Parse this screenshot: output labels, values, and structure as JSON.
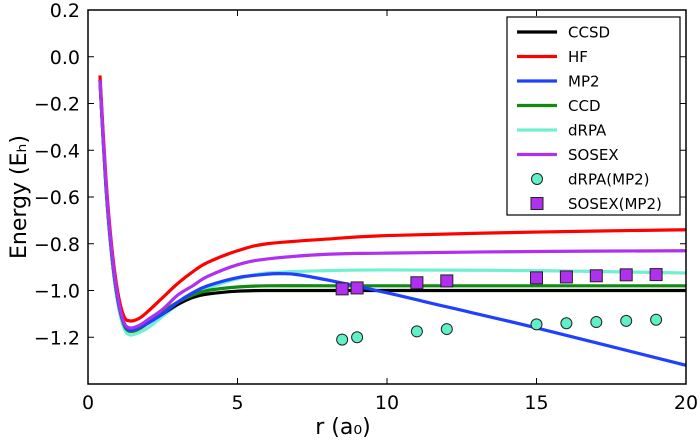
{
  "chart_data": {
    "type": "line",
    "xlabel": "r (a₀)",
    "ylabel": "Energy (Eₕ)",
    "xlim": [
      0,
      20
    ],
    "ylim": [
      -1.4,
      0.2
    ],
    "xticks": [
      "0",
      "5",
      "10",
      "15",
      "20"
    ],
    "yticks": [
      "0.2",
      "0.0",
      "−0.2",
      "−0.4",
      "−0.6",
      "−0.8",
      "−1.0",
      "−1.2"
    ],
    "grid": false,
    "legend_position": "top-right",
    "series": [
      {
        "name": "CCSD",
        "color": "#000000",
        "kind": "line",
        "x": [
          0.4,
          0.6,
          0.8,
          1.0,
          1.2,
          1.4,
          1.7,
          2,
          2.5,
          3,
          3.5,
          4,
          5,
          6,
          8,
          10,
          15,
          20
        ],
        "y": [
          -0.1,
          -0.55,
          -0.85,
          -1.04,
          -1.14,
          -1.17,
          -1.16,
          -1.14,
          -1.1,
          -1.06,
          -1.03,
          -1.015,
          -1.003,
          -1.0,
          -1.0,
          -1.0,
          -1.0,
          -1.0
        ]
      },
      {
        "name": "HF",
        "color": "#ff0000",
        "kind": "line",
        "x": [
          0.4,
          0.6,
          0.8,
          1.0,
          1.2,
          1.4,
          1.7,
          2,
          2.5,
          3,
          3.5,
          4,
          5,
          6,
          8,
          10,
          15,
          20
        ],
        "y": [
          -0.08,
          -0.52,
          -0.82,
          -1.01,
          -1.11,
          -1.13,
          -1.12,
          -1.09,
          -1.03,
          -0.97,
          -0.92,
          -0.88,
          -0.83,
          -0.8,
          -0.78,
          -0.765,
          -0.75,
          -0.74
        ]
      },
      {
        "name": "MP2",
        "color": "#2040ff",
        "kind": "line",
        "x": [
          0.4,
          0.6,
          0.8,
          1.0,
          1.2,
          1.4,
          1.7,
          2,
          2.5,
          3,
          3.5,
          4,
          5,
          6,
          6.5,
          7,
          8,
          10,
          12,
          15,
          20
        ],
        "y": [
          -0.1,
          -0.55,
          -0.85,
          -1.04,
          -1.14,
          -1.17,
          -1.16,
          -1.14,
          -1.1,
          -1.05,
          -1.01,
          -0.98,
          -0.945,
          -0.93,
          -0.928,
          -0.932,
          -0.955,
          -1.01,
          -1.07,
          -1.16,
          -1.32
        ]
      },
      {
        "name": "CCD",
        "color": "#108a10",
        "kind": "line",
        "x": [
          0.4,
          0.6,
          0.8,
          1.0,
          1.2,
          1.4,
          1.7,
          2,
          2.5,
          3,
          3.5,
          4,
          5,
          6,
          8,
          10,
          15,
          20
        ],
        "y": [
          -0.1,
          -0.55,
          -0.85,
          -1.04,
          -1.145,
          -1.175,
          -1.165,
          -1.14,
          -1.09,
          -1.05,
          -1.02,
          -1.0,
          -0.985,
          -0.98,
          -0.98,
          -0.98,
          -0.98,
          -0.98
        ]
      },
      {
        "name": "dRPA",
        "color": "#70f0d0",
        "kind": "line",
        "x": [
          0.4,
          0.6,
          0.8,
          1.0,
          1.2,
          1.4,
          1.7,
          2,
          2.5,
          3,
          3.5,
          4,
          5,
          6,
          8,
          10,
          15,
          20
        ],
        "y": [
          -0.11,
          -0.57,
          -0.87,
          -1.06,
          -1.16,
          -1.19,
          -1.18,
          -1.16,
          -1.11,
          -1.06,
          -1.02,
          -0.99,
          -0.95,
          -0.925,
          -0.915,
          -0.912,
          -0.915,
          -0.925
        ]
      },
      {
        "name": "SOSEX",
        "color": "#b030f0",
        "kind": "line",
        "x": [
          0.4,
          0.6,
          0.8,
          1.0,
          1.2,
          1.4,
          1.7,
          2,
          2.5,
          3,
          3.5,
          4,
          5,
          6,
          8,
          10,
          15,
          20
        ],
        "y": [
          -0.1,
          -0.54,
          -0.84,
          -1.03,
          -1.135,
          -1.16,
          -1.15,
          -1.125,
          -1.08,
          -1.02,
          -0.98,
          -0.94,
          -0.89,
          -0.865,
          -0.845,
          -0.84,
          -0.833,
          -0.83
        ]
      },
      {
        "name": "dRPA(MP2)",
        "color": "#60f0c8",
        "kind": "circle",
        "x": [
          8.5,
          9,
          11,
          12,
          15,
          16,
          17,
          18,
          19
        ],
        "y": [
          -1.21,
          -1.2,
          -1.175,
          -1.165,
          -1.145,
          -1.14,
          -1.135,
          -1.13,
          -1.125
        ]
      },
      {
        "name": "SOSEX(MP2)",
        "color": "#b030f0",
        "kind": "square",
        "x": [
          8.5,
          9,
          11,
          12,
          15,
          16,
          17,
          18,
          19
        ],
        "y": [
          -0.993,
          -0.989,
          -0.967,
          -0.959,
          -0.946,
          -0.942,
          -0.937,
          -0.933,
          -0.932
        ]
      }
    ]
  }
}
